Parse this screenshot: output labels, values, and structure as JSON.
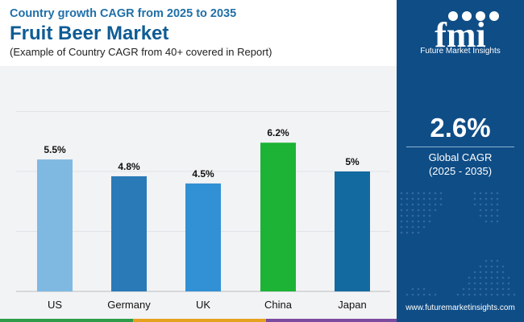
{
  "header": {
    "subtitle": "Country growth CAGR from 2025 to 2035",
    "title": "Fruit Beer Market",
    "note": "(Example of Country CAGR from 40+ covered in Report)"
  },
  "chart_data": {
    "type": "bar",
    "categories": [
      "US",
      "Germany",
      "UK",
      "China",
      "Japan"
    ],
    "values": [
      5.5,
      4.8,
      4.5,
      6.2,
      5.0
    ],
    "data_labels": [
      "5.5%",
      "4.8%",
      "4.5%",
      "6.2%",
      "5%"
    ],
    "colors": [
      "#7fb9e2",
      "#2a7ab8",
      "#3290d4",
      "#1db336",
      "#136aa0"
    ],
    "ylim": [
      0,
      7
    ],
    "grid": true,
    "title": "",
    "xlabel": "",
    "ylabel": ""
  },
  "sidebar": {
    "logo_text": "fmi",
    "brand_name": "Future Market Insights",
    "value": "2.6%",
    "label": "Global CAGR",
    "period": "(2025 - 2035)",
    "website": "www.futuremarketinsights.com"
  },
  "colors": {
    "sidebar_bg": "#0f4d86",
    "title_blue": "#0f5c94",
    "stripe": [
      "#2e9c4a",
      "#e6a11f",
      "#7b4ba0",
      "#2e9c4a"
    ]
  }
}
